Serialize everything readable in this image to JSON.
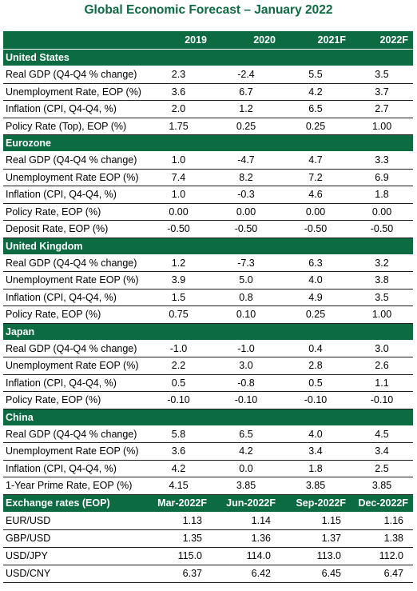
{
  "title": "Global Economic Forecast – January 2022",
  "header": {
    "blank": "",
    "years": [
      "2019",
      "2020",
      "2021F",
      "2022F"
    ]
  },
  "sections": [
    {
      "name": "United States",
      "rows": [
        {
          "label": "Real GDP (Q4-Q4 % change)",
          "values": [
            "2.3",
            "-2.4",
            "5.5",
            "3.5"
          ]
        },
        {
          "label": "Unemployment Rate, EOP (%)",
          "values": [
            "3.6",
            "6.7",
            "4.2",
            "3.7"
          ]
        },
        {
          "label": "Inflation (CPI, Q4-Q4, %)",
          "values": [
            "2.0",
            "1.2",
            "6.5",
            "2.7"
          ]
        },
        {
          "label": "Policy Rate (Top), EOP (%)",
          "values": [
            "1.75",
            "0.25",
            "0.25",
            "1.00"
          ]
        }
      ]
    },
    {
      "name": "Eurozone",
      "rows": [
        {
          "label": "Real GDP (Q4-Q4 % change)",
          "values": [
            "1.0",
            "-4.7",
            "4.7",
            "3.3"
          ]
        },
        {
          "label": "Unemployment Rate EOP (%)",
          "values": [
            "7.4",
            "8.2",
            "7.2",
            "6.9"
          ]
        },
        {
          "label": "Inflation (CPI, Q4-Q4, %)",
          "values": [
            "1.0",
            "-0.3",
            "4.6",
            "1.8"
          ]
        },
        {
          "label": "Policy Rate, EOP (%)",
          "values": [
            "0.00",
            "0.00",
            "0.00",
            "0.00"
          ]
        },
        {
          "label": "Deposit Rate, EOP (%)",
          "values": [
            "-0.50",
            "-0.50",
            "-0.50",
            "-0.50"
          ]
        }
      ]
    },
    {
      "name": "United Kingdom",
      "rows": [
        {
          "label": "Real GDP (Q4-Q4 % change)",
          "values": [
            "1.2",
            "-7.3",
            "6.3",
            "3.2"
          ]
        },
        {
          "label": "Unemployment Rate EOP (%)",
          "values": [
            "3.9",
            "5.0",
            "4.0",
            "3.8"
          ]
        },
        {
          "label": "Inflation (CPI, Q4-Q4, %)",
          "values": [
            "1.5",
            "0.8",
            "4.9",
            "3.5"
          ]
        },
        {
          "label": "Policy Rate, EOP (%)",
          "values": [
            "0.75",
            "0.10",
            "0.25",
            "1.00"
          ]
        }
      ]
    },
    {
      "name": "Japan",
      "rows": [
        {
          "label": "Real GDP (Q4-Q4 % change)",
          "values": [
            "-1.0",
            "-1.0",
            "0.4",
            "3.0"
          ]
        },
        {
          "label": "Unemployment Rate EOP (%)",
          "values": [
            "2.2",
            "3.0",
            "2.8",
            "2.6"
          ]
        },
        {
          "label": "Inflation (CPI, Q4-Q4, %)",
          "values": [
            "0.5",
            "-0.8",
            "0.5",
            "1.1"
          ]
        },
        {
          "label": "Policy Rate, EOP (%)",
          "values": [
            "-0.10",
            "-0.10",
            "-0.10",
            "-0.10"
          ]
        }
      ]
    },
    {
      "name": "China",
      "rows": [
        {
          "label": "Real GDP (Q4-Q4 % change)",
          "values": [
            "5.8",
            "6.5",
            "4.0",
            "4.5"
          ]
        },
        {
          "label": "Unemployment Rate EOP (%)",
          "values": [
            "3.6",
            "4.2",
            "3.4",
            "3.4"
          ]
        },
        {
          "label": "Inflation (CPI, Q4-Q4, %)",
          "values": [
            "4.2",
            "0.0",
            "1.8",
            "2.5"
          ]
        },
        {
          "label": "1-Year Prime Rate, EOP (%)",
          "values": [
            "4.15",
            "3.85",
            "3.85",
            "3.85"
          ]
        }
      ]
    }
  ],
  "exchange": {
    "title": "Exchange rates (EOP)",
    "periods": [
      "Mar-2022F",
      "Jun-2022F",
      "Sep-2022F",
      "Dec-2022F"
    ],
    "rows": [
      {
        "label": "EUR/USD",
        "values": [
          "1.13",
          "1.14",
          "1.15",
          "1.16"
        ]
      },
      {
        "label": "GBP/USD",
        "values": [
          "1.35",
          "1.36",
          "1.37",
          "1.38"
        ]
      },
      {
        "label": "USD/JPY",
        "values": [
          "115.0",
          "114.0",
          "113.0",
          "112.0"
        ]
      },
      {
        "label": "USD/CNY",
        "values": [
          "6.37",
          "6.42",
          "6.45",
          "6.47"
        ]
      }
    ]
  },
  "colors": {
    "header_green": "#0d6b42",
    "title_green": "#0d6b42"
  }
}
